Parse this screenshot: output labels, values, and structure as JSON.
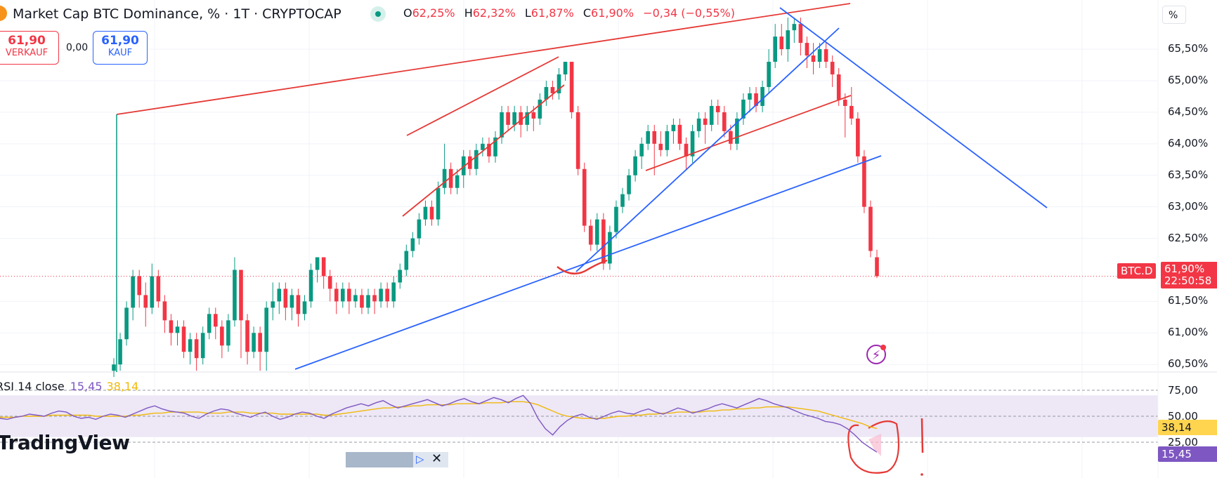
{
  "header": {
    "title": "Market Cap BTC Dominance, % · 1T · CRYPTOCAP",
    "ohlc": [
      {
        "key": "O",
        "value": "62,25%"
      },
      {
        "key": "H",
        "value": "62,32%"
      },
      {
        "key": "L",
        "value": "61,87%"
      },
      {
        "key": "C",
        "value": "61,90%"
      }
    ],
    "change": "−0,34 (−0,55%)"
  },
  "trade": {
    "sell_price": "61,90",
    "sell_label": "VERKAUF",
    "spread": "0,00",
    "buy_price": "61,90",
    "buy_label": "KAUF"
  },
  "scale_button": "%",
  "price_axis_labels": [
    "65,50%",
    "65,00%",
    "64,50%",
    "64,00%",
    "63,50%",
    "63,00%",
    "62,50%",
    "61,50%",
    "61,00%",
    "60,50%"
  ],
  "rsi": {
    "label": "RSI 14 close",
    "value": "15,45",
    "ma_value": "38,14",
    "axis_labels": [
      "75,00",
      "50,00",
      "25,00"
    ]
  },
  "tags": {
    "symbol": "BTC.D",
    "price": "61,90%",
    "countdown": "22:50:58",
    "rsi_ma": "38,14",
    "rsi": "15,45"
  },
  "logo": "TradingView",
  "colors": {
    "up": "#089981",
    "down": "#f23645",
    "trendline_red": "#e53935",
    "trendline_blue": "#2962ff",
    "rsi_line": "#7e57c2",
    "rsi_ma": "#f0b90b",
    "rsi_band": "#ede7f6"
  },
  "chart_data": {
    "type": "candlestick",
    "ylim": [
      60.4,
      66.2
    ],
    "y_ticks": [
      65.5,
      65.0,
      64.5,
      64.0,
      63.5,
      63.0,
      62.5,
      61.5,
      61.0,
      60.5
    ],
    "last_price": 61.9,
    "candles": [
      [
        60.4,
        60.5,
        60.3,
        60.6
      ],
      [
        60.5,
        60.9,
        60.4,
        61.0
      ],
      [
        60.9,
        61.4,
        60.8,
        61.5
      ],
      [
        61.4,
        61.9,
        61.2,
        62.0
      ],
      [
        61.9,
        61.6,
        61.4,
        62.0
      ],
      [
        61.6,
        61.4,
        61.1,
        61.8
      ],
      [
        61.4,
        61.9,
        61.3,
        62.1
      ],
      [
        61.9,
        61.5,
        61.4,
        62.0
      ],
      [
        61.5,
        61.2,
        61.0,
        61.6
      ],
      [
        61.2,
        61.0,
        60.8,
        61.3
      ],
      [
        61.0,
        61.1,
        60.8,
        61.2
      ],
      [
        61.1,
        60.7,
        60.6,
        61.2
      ],
      [
        60.7,
        60.9,
        60.5,
        61.0
      ],
      [
        60.9,
        60.6,
        60.4,
        61.0
      ],
      [
        60.6,
        61.0,
        60.5,
        61.1
      ],
      [
        61.0,
        61.3,
        60.9,
        61.4
      ],
      [
        61.3,
        61.1,
        60.9,
        61.4
      ],
      [
        61.1,
        60.8,
        60.6,
        61.2
      ],
      [
        60.8,
        61.2,
        60.7,
        61.3
      ],
      [
        61.2,
        62.0,
        61.1,
        62.2
      ],
      [
        62.0,
        61.2,
        60.6,
        62.0
      ],
      [
        61.2,
        60.7,
        60.5,
        61.3
      ],
      [
        60.7,
        61.0,
        60.6,
        61.1
      ],
      [
        61.0,
        60.7,
        60.4,
        61.1
      ],
      [
        60.7,
        61.4,
        60.4,
        61.5
      ],
      [
        61.4,
        61.5,
        61.2,
        61.8
      ],
      [
        61.5,
        61.7,
        61.3,
        61.8
      ],
      [
        61.7,
        61.4,
        61.2,
        61.8
      ],
      [
        61.4,
        61.6,
        61.2,
        61.7
      ],
      [
        61.6,
        61.3,
        61.1,
        61.7
      ],
      [
        61.3,
        61.5,
        61.2,
        61.6
      ],
      [
        61.5,
        62.0,
        61.4,
        62.1
      ],
      [
        62.0,
        62.2,
        61.8,
        62.2
      ],
      [
        62.2,
        61.9,
        61.7,
        62.2
      ],
      [
        61.9,
        61.7,
        61.5,
        62.0
      ],
      [
        61.7,
        61.5,
        61.3,
        61.8
      ],
      [
        61.5,
        61.7,
        61.4,
        61.8
      ],
      [
        61.7,
        61.5,
        61.3,
        61.8
      ],
      [
        61.5,
        61.6,
        61.4,
        61.7
      ],
      [
        61.6,
        61.4,
        61.3,
        61.7
      ],
      [
        61.4,
        61.6,
        61.3,
        61.7
      ],
      [
        61.6,
        61.5,
        61.3,
        61.7
      ],
      [
        61.5,
        61.7,
        61.4,
        61.8
      ],
      [
        61.7,
        61.5,
        61.4,
        61.8
      ],
      [
        61.5,
        61.8,
        61.4,
        61.9
      ],
      [
        61.8,
        62.0,
        61.7,
        62.1
      ],
      [
        62.0,
        62.3,
        61.9,
        62.4
      ],
      [
        62.3,
        62.5,
        62.2,
        62.6
      ],
      [
        62.5,
        62.8,
        62.4,
        62.9
      ],
      [
        62.8,
        63.0,
        62.7,
        63.1
      ],
      [
        63.0,
        62.8,
        62.7,
        63.1
      ],
      [
        62.8,
        63.3,
        62.7,
        63.4
      ],
      [
        63.3,
        63.6,
        63.2,
        64.0
      ],
      [
        63.6,
        63.3,
        63.2,
        63.7
      ],
      [
        63.3,
        63.5,
        63.2,
        63.6
      ],
      [
        63.5,
        63.8,
        63.3,
        63.9
      ],
      [
        63.8,
        63.6,
        63.5,
        63.9
      ],
      [
        63.6,
        63.9,
        63.5,
        64.0
      ],
      [
        63.9,
        64.0,
        63.8,
        64.1
      ],
      [
        64.0,
        63.8,
        63.7,
        64.1
      ],
      [
        63.8,
        64.1,
        63.7,
        64.2
      ],
      [
        64.1,
        64.5,
        64.0,
        64.6
      ],
      [
        64.5,
        64.3,
        64.2,
        64.6
      ],
      [
        64.3,
        64.5,
        64.2,
        64.6
      ],
      [
        64.5,
        64.3,
        64.1,
        64.6
      ],
      [
        64.3,
        64.5,
        64.2,
        64.6
      ],
      [
        64.5,
        64.4,
        64.2,
        64.6
      ],
      [
        64.4,
        64.7,
        64.3,
        64.8
      ],
      [
        64.7,
        64.9,
        64.6,
        65.0
      ],
      [
        64.9,
        64.8,
        64.7,
        65.0
      ],
      [
        64.8,
        65.1,
        64.7,
        65.2
      ],
      [
        65.1,
        65.3,
        65.0,
        65.3
      ],
      [
        65.3,
        64.5,
        64.4,
        65.3
      ],
      [
        64.5,
        63.6,
        63.5,
        64.6
      ],
      [
        63.6,
        62.7,
        62.6,
        63.7
      ],
      [
        62.7,
        62.4,
        62.3,
        62.8
      ],
      [
        62.4,
        62.8,
        62.3,
        62.9
      ],
      [
        62.8,
        62.1,
        62.0,
        62.9
      ],
      [
        62.1,
        62.6,
        62.0,
        62.7
      ],
      [
        62.6,
        63.0,
        62.5,
        63.1
      ],
      [
        63.0,
        63.2,
        62.9,
        63.3
      ],
      [
        63.2,
        63.5,
        63.1,
        63.6
      ],
      [
        63.5,
        63.8,
        63.4,
        63.9
      ],
      [
        63.8,
        64.0,
        63.6,
        64.1
      ],
      [
        64.0,
        64.2,
        63.9,
        64.3
      ],
      [
        64.2,
        64.0,
        63.5,
        64.3
      ],
      [
        64.0,
        63.9,
        63.8,
        64.2
      ],
      [
        63.9,
        64.2,
        63.8,
        64.3
      ],
      [
        64.2,
        64.3,
        64.0,
        64.4
      ],
      [
        64.3,
        64.0,
        63.9,
        64.4
      ],
      [
        64.0,
        63.8,
        63.6,
        64.1
      ],
      [
        63.8,
        64.2,
        63.7,
        64.3
      ],
      [
        64.2,
        64.4,
        64.1,
        64.5
      ],
      [
        64.4,
        64.3,
        64.0,
        64.5
      ],
      [
        64.3,
        64.6,
        64.2,
        64.7
      ],
      [
        64.6,
        64.5,
        64.3,
        64.7
      ],
      [
        64.5,
        64.2,
        64.1,
        64.6
      ],
      [
        64.2,
        64.0,
        63.9,
        64.3
      ],
      [
        64.0,
        64.4,
        63.9,
        64.5
      ],
      [
        64.4,
        64.7,
        64.3,
        64.8
      ],
      [
        64.7,
        64.8,
        64.5,
        64.9
      ],
      [
        64.8,
        64.6,
        64.5,
        64.9
      ],
      [
        64.6,
        64.9,
        64.5,
        65.0
      ],
      [
        64.9,
        65.3,
        64.8,
        65.5
      ],
      [
        65.3,
        65.7,
        65.2,
        65.9
      ],
      [
        65.7,
        65.5,
        65.4,
        65.9
      ],
      [
        65.5,
        65.8,
        65.3,
        66.0
      ],
      [
        65.8,
        65.9,
        65.6,
        66.0
      ],
      [
        65.9,
        65.6,
        65.4,
        66.0
      ],
      [
        65.6,
        65.4,
        65.2,
        65.7
      ],
      [
        65.4,
        65.3,
        65.1,
        65.6
      ],
      [
        65.3,
        65.5,
        65.2,
        65.6
      ],
      [
        65.5,
        65.3,
        65.2,
        65.6
      ],
      [
        65.3,
        65.1,
        64.9,
        65.4
      ],
      [
        65.1,
        64.7,
        64.6,
        65.2
      ],
      [
        64.7,
        64.6,
        64.1,
        64.8
      ],
      [
        64.6,
        64.4,
        64.3,
        64.9
      ],
      [
        64.4,
        63.8,
        63.7,
        64.5
      ],
      [
        63.8,
        63.0,
        62.9,
        63.9
      ],
      [
        63.0,
        62.3,
        62.2,
        63.1
      ],
      [
        62.2,
        61.9,
        61.87,
        62.32
      ]
    ],
    "rsi": {
      "ylim": [
        0,
        100
      ],
      "bands": [
        30,
        70
      ],
      "values": [
        48,
        47,
        49,
        50,
        52,
        51,
        50,
        53,
        55,
        54,
        50,
        48,
        49,
        47,
        50,
        52,
        51,
        49,
        52,
        55,
        58,
        60,
        57,
        55,
        54,
        53,
        50,
        48,
        52,
        55,
        57,
        56,
        53,
        51,
        49,
        52,
        54,
        50,
        47,
        49,
        52,
        54,
        53,
        50,
        48,
        52,
        55,
        58,
        60,
        62,
        60,
        63,
        65,
        61,
        58,
        60,
        62,
        64,
        66,
        63,
        60,
        62,
        65,
        67,
        64,
        62,
        65,
        68,
        66,
        63,
        67,
        70,
        62,
        48,
        38,
        32,
        40,
        46,
        50,
        52,
        49,
        47,
        50,
        53,
        55,
        53,
        52,
        55,
        57,
        54,
        52,
        55,
        58,
        56,
        53,
        55,
        57,
        60,
        62,
        60,
        58,
        61,
        64,
        67,
        65,
        62,
        60,
        58,
        55,
        52,
        50,
        48,
        45,
        44,
        42,
        38,
        32,
        25,
        20,
        15.45
      ],
      "ma": [
        49,
        49,
        49,
        50,
        50,
        50,
        50,
        51,
        51,
        51,
        51,
        51,
        51,
        50,
        50,
        50,
        50,
        50,
        51,
        51,
        52,
        53,
        53,
        54,
        54,
        54,
        54,
        54,
        53,
        53,
        53,
        54,
        54,
        54,
        53,
        53,
        53,
        53,
        52,
        52,
        52,
        52,
        52,
        52,
        51,
        51,
        52,
        53,
        54,
        55,
        56,
        57,
        58,
        58,
        59,
        59,
        60,
        60,
        61,
        61,
        61,
        61,
        62,
        62,
        62,
        62,
        63,
        63,
        63,
        64,
        64,
        64,
        63,
        61,
        58,
        55,
        52,
        50,
        49,
        48,
        48,
        48,
        48,
        49,
        50,
        50,
        51,
        51,
        52,
        52,
        53,
        53,
        54,
        54,
        54,
        54,
        55,
        55,
        56,
        56,
        57,
        57,
        58,
        58,
        59,
        59,
        59,
        59,
        58,
        57,
        56,
        55,
        53,
        51,
        49,
        47,
        45,
        43,
        40,
        38.14
      ]
    }
  }
}
